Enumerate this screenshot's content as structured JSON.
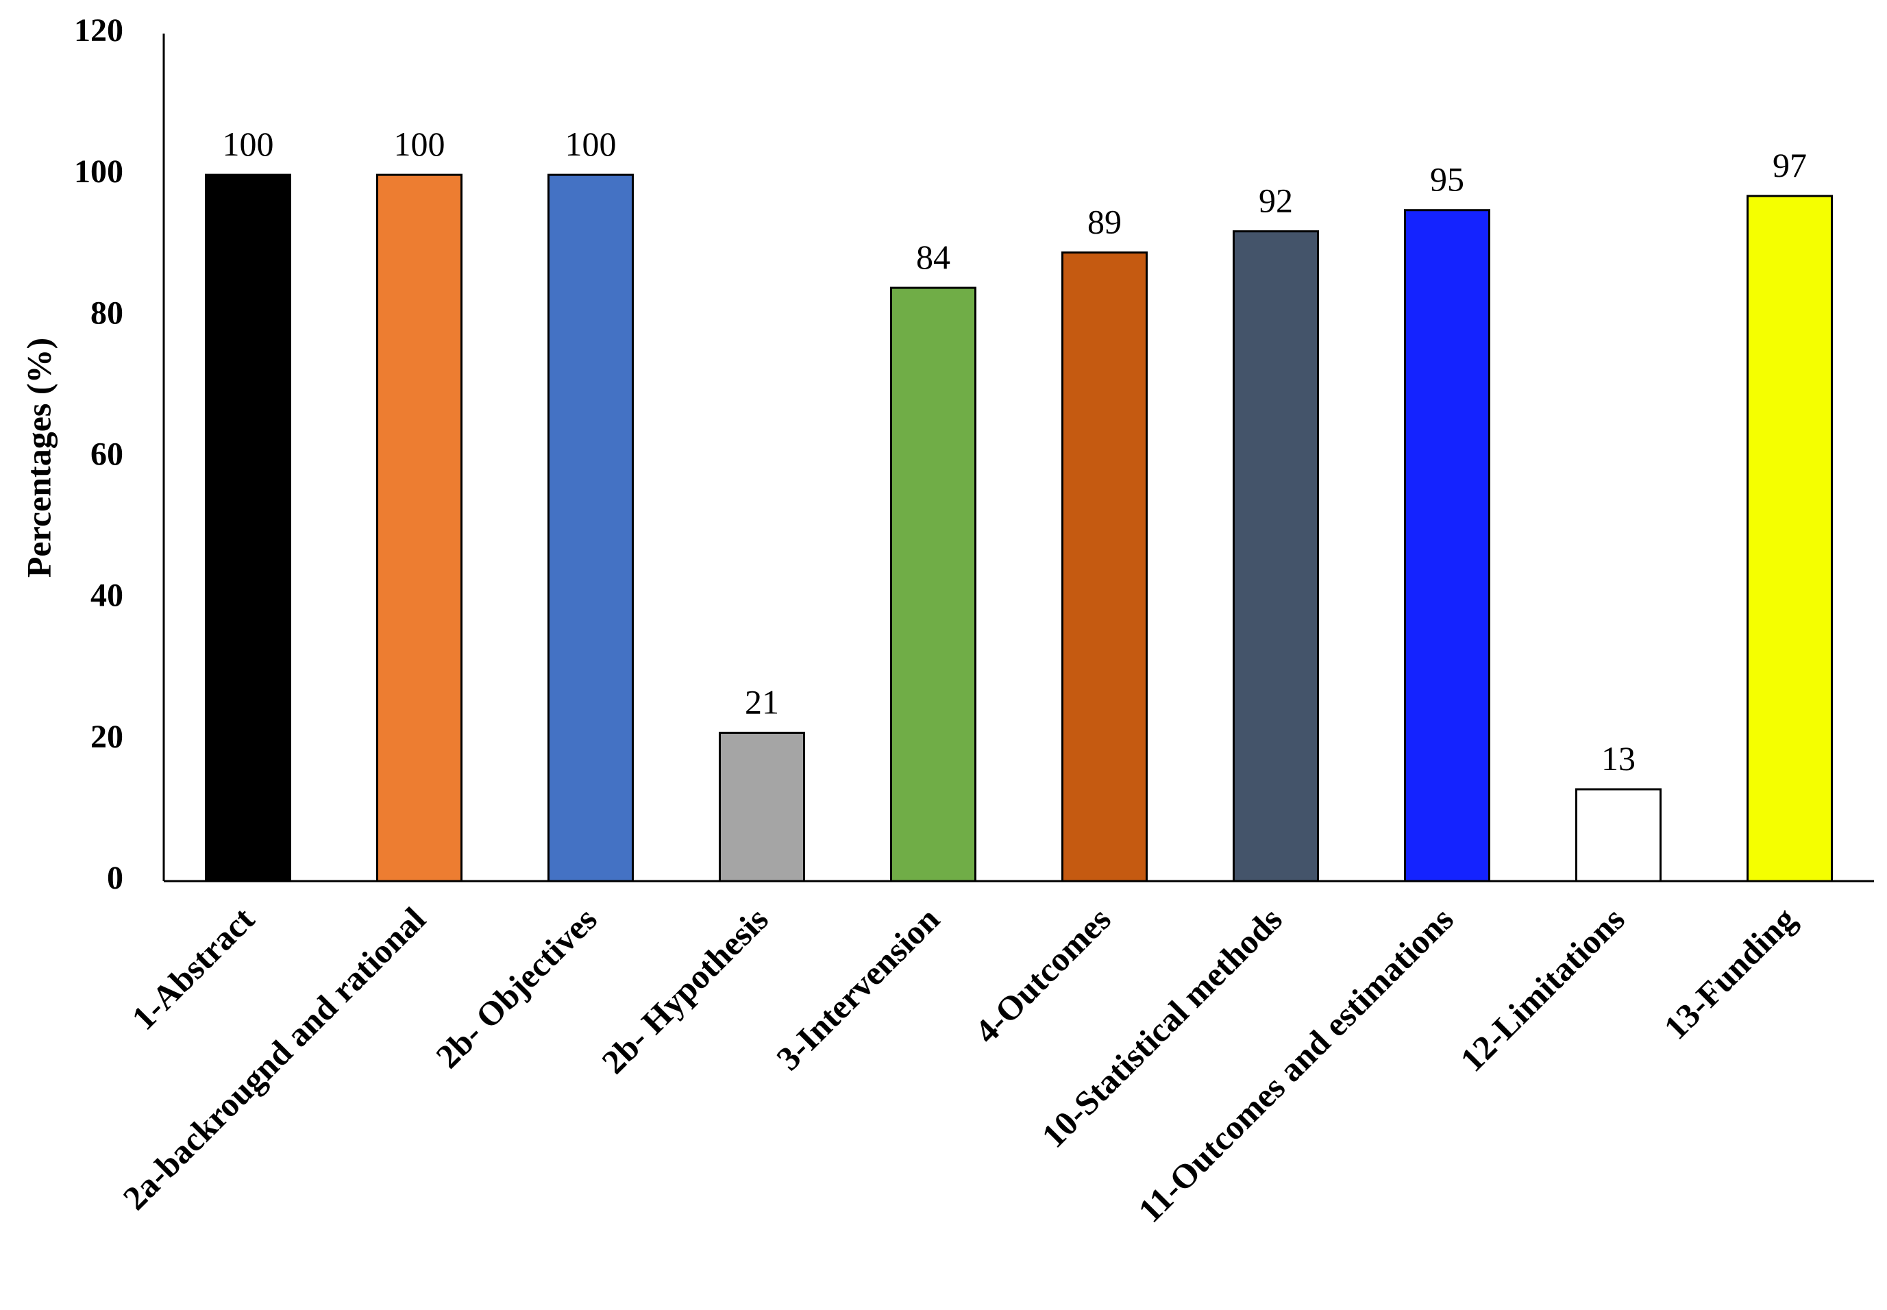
{
  "chart_data": {
    "type": "bar",
    "title": "",
    "xlabel": "",
    "ylabel": "Percentages (%)",
    "ylim": [
      0,
      120
    ],
    "yticks": [
      "0",
      "20",
      "40",
      "60",
      "80",
      "100",
      "120"
    ],
    "grid": false,
    "legend": "none",
    "categories": [
      "1-Abstract",
      "2a-backrougnd and rational",
      "2b- Objectives",
      "2b- Hypothesis",
      "3-Intervension",
      "4-Outcomes",
      "10-Statistical methods",
      "11-Outcomes and estimations",
      "12-Limitations",
      "13-Funding"
    ],
    "values": [
      100,
      100,
      100,
      21,
      84,
      89,
      92,
      95,
      13,
      97
    ],
    "value_labels": [
      "100",
      "100",
      "100",
      "21",
      "84",
      "89",
      "92",
      "95",
      "13",
      "97"
    ],
    "colors": [
      "#000000",
      "#ED7D31",
      "#4472C4",
      "#A5A5A5",
      "#70AD47",
      "#C55A11",
      "#44546A",
      "#1423FF",
      "#FFFFFF",
      "#F5FF00"
    ]
  }
}
